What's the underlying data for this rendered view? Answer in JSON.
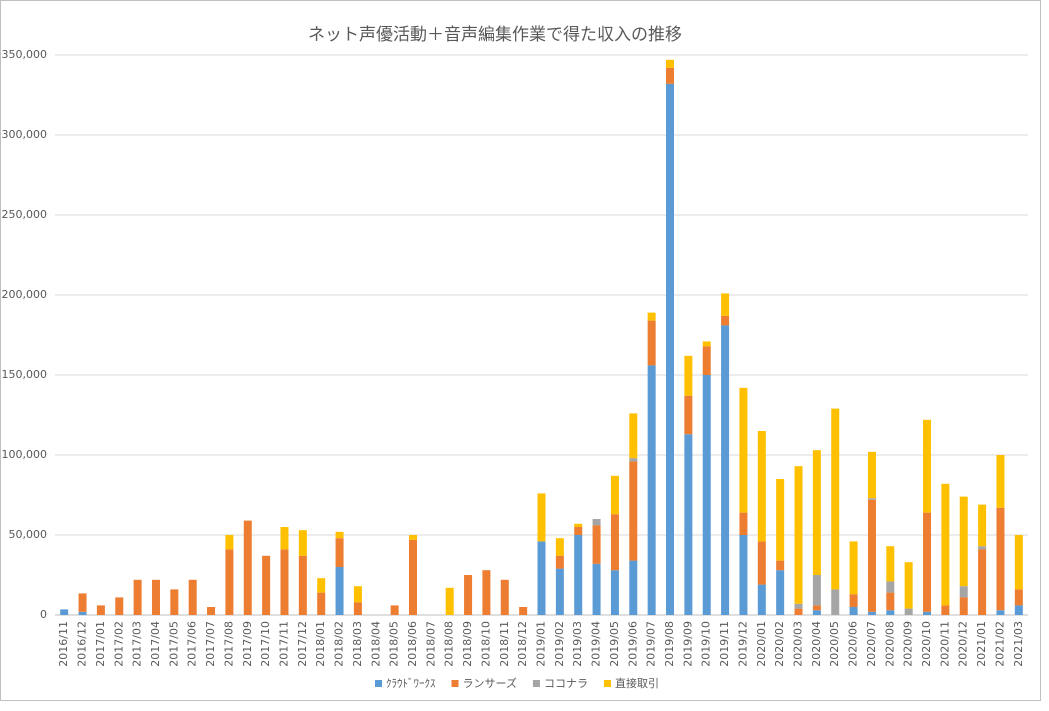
{
  "chart_data": {
    "type": "stacked_bar",
    "title": "ネット声優活動＋音声編集作業で得た収入の推移",
    "categories": [
      "2016/11",
      "2016/12",
      "2017/01",
      "2017/02",
      "2017/03",
      "2017/04",
      "2017/05",
      "2017/06",
      "2017/07",
      "2017/08",
      "2017/09",
      "2017/10",
      "2017/11",
      "2017/12",
      "2018/01",
      "2018/02",
      "2018/03",
      "2018/04",
      "2018/05",
      "2018/06",
      "2018/07",
      "2018/08",
      "2018/09",
      "2018/10",
      "2018/11",
      "2018/12",
      "2019/01",
      "2019/02",
      "2019/03",
      "2019/04",
      "2019/05",
      "2019/06",
      "2019/07",
      "2019/08",
      "2019/09",
      "2019/10",
      "2019/11",
      "2019/12",
      "2020/01",
      "2020/02",
      "2020/03",
      "2020/04",
      "2020/05",
      "2020/06",
      "2020/07",
      "2020/08",
      "2020/09",
      "2020/10",
      "2020/11",
      "2020/12",
      "2021/01",
      "2021/02",
      "2021/03"
    ],
    "series": [
      {
        "name": "ｸﾗｳﾄﾞﾜｰｸｽ",
        "color": "#5b9bd5",
        "values": [
          3500,
          2000,
          0,
          0,
          0,
          0,
          0,
          0,
          0,
          0,
          0,
          0,
          0,
          0,
          0,
          30000,
          0,
          0,
          0,
          0,
          0,
          0,
          0,
          0,
          0,
          0,
          46000,
          29000,
          50000,
          32000,
          28000,
          34000,
          156000,
          332000,
          113000,
          150000,
          181000,
          50000,
          19000,
          28000,
          0,
          3000,
          0,
          5000,
          2000,
          3000,
          0,
          2000,
          0,
          0,
          0,
          3000,
          6000
        ]
      },
      {
        "name": "ランサーズ",
        "color": "#ed7d31",
        "values": [
          0,
          11500,
          6000,
          11000,
          22000,
          22000,
          16000,
          22000,
          5000,
          41000,
          59000,
          37000,
          41000,
          37000,
          14000,
          18000,
          8000,
          0,
          6000,
          47000,
          0,
          0,
          25000,
          28000,
          22000,
          5000,
          0,
          8000,
          5000,
          24000,
          35000,
          62000,
          28000,
          10000,
          24000,
          18000,
          6000,
          14000,
          27000,
          6000,
          4000,
          3000,
          0,
          8000,
          70000,
          11000,
          0,
          62000,
          6000,
          11000,
          41000,
          64000,
          10000
        ]
      },
      {
        "name": "ココナラ",
        "color": "#a5a5a5",
        "values": [
          0,
          0,
          0,
          0,
          0,
          0,
          0,
          0,
          0,
          0,
          0,
          0,
          0,
          0,
          0,
          0,
          0,
          0,
          0,
          0,
          0,
          0,
          0,
          0,
          0,
          0,
          0,
          0,
          0,
          4000,
          0,
          2000,
          0,
          0,
          0,
          0,
          0,
          0,
          0,
          0,
          3000,
          19000,
          16000,
          0,
          1000,
          7000,
          4000,
          0,
          0,
          7000,
          2000,
          0,
          0
        ]
      },
      {
        "name": "直接取引",
        "color": "#ffc000",
        "values": [
          0,
          0,
          0,
          0,
          0,
          0,
          0,
          0,
          0,
          9000,
          0,
          0,
          14000,
          16000,
          9000,
          4000,
          10000,
          0,
          0,
          3000,
          0,
          17000,
          0,
          0,
          0,
          0,
          30000,
          11000,
          2000,
          0,
          24000,
          28000,
          5000,
          5000,
          25000,
          3000,
          14000,
          78000,
          69000,
          51000,
          86000,
          78000,
          113000,
          33000,
          29000,
          22000,
          29000,
          58000,
          76000,
          56000,
          26000,
          33000,
          34000
        ]
      }
    ],
    "ylim": [
      0,
      350000
    ],
    "yticks": [
      0,
      {
        "value": 50000,
        "label": "50,000"
      },
      {
        "value": 100000,
        "label": "100,000"
      },
      {
        "value": 150000,
        "label": "150,000"
      },
      {
        "value": 200000,
        "label": "200,000"
      },
      {
        "value": 250000,
        "label": "250,000"
      },
      {
        "value": 300000,
        "label": "300,000"
      },
      {
        "value": 350000,
        "label": "350,000"
      }
    ],
    "grid": true,
    "legend": "bottom"
  }
}
